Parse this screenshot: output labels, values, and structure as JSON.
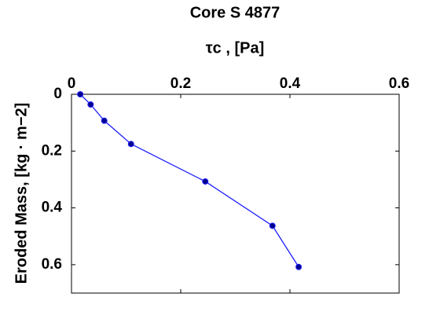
{
  "chart_data": {
    "type": "line",
    "title": "Core S 4877",
    "x_label": "τc , [Pa]",
    "y_label": "Eroded Mass, [kg · m−2]",
    "x": [
      0.016,
      0.035,
      0.06,
      0.109,
      0.245,
      0.368,
      0.416
    ],
    "values": [
      0,
      0.036,
      0.093,
      0.175,
      0.307,
      0.463,
      0.608
    ],
    "color": "#1f1fff",
    "marker_color": "#00008b",
    "xlim": [
      0,
      0.6
    ],
    "xticks": [
      0,
      0.2,
      0.4,
      0.6
    ],
    "ylim": [
      0,
      0.7
    ],
    "yticks": [
      0,
      0.2,
      0.4,
      0.6
    ],
    "y_reversed": true,
    "x_axis_position": "top",
    "grid": false
  }
}
